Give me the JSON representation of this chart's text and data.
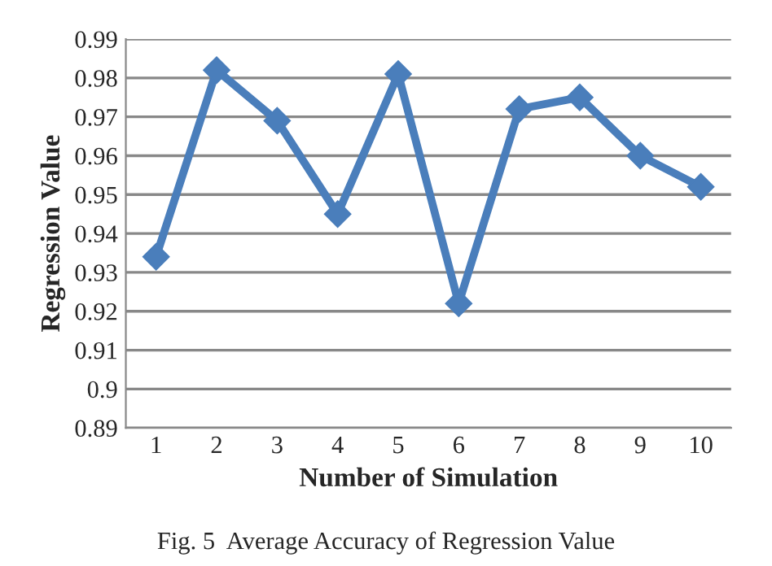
{
  "chart_data": {
    "type": "line",
    "xlabel": "Number of Simulation",
    "ylabel": "Regression Value",
    "categories": [
      "1",
      "2",
      "3",
      "4",
      "5",
      "6",
      "7",
      "8",
      "9",
      "10"
    ],
    "series": [
      {
        "color": "#4a7ebb",
        "values": [
          0.934,
          0.982,
          0.969,
          0.945,
          0.981,
          0.922,
          0.972,
          0.975,
          0.96,
          0.952
        ]
      }
    ],
    "ylim": [
      0.89,
      0.99
    ],
    "yticks": [
      0.89,
      0.9,
      0.91,
      0.92,
      0.93,
      0.94,
      0.95,
      0.96,
      0.97,
      0.98,
      0.99
    ],
    "grid": "y",
    "marker": "diamond",
    "line_style": "solid",
    "annotations": [
      "Fig. 5  Average Accuracy of Regression Value"
    ]
  }
}
